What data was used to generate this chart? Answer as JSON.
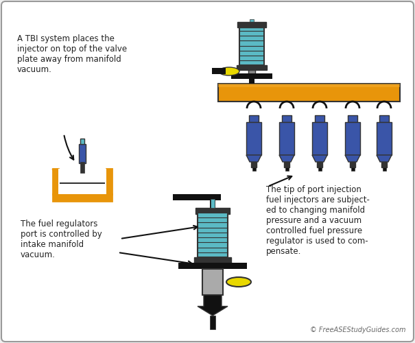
{
  "bg_color": "#f0f0f0",
  "border_color": "#aaaaaa",
  "orange": "#E8950A",
  "blue_inj": "#3A55A8",
  "cyan_coil": "#5BBAC5",
  "gray_body": "#888888",
  "black": "#111111",
  "yellow": "#E8D800",
  "dark_gray": "#333333",
  "mid_gray": "#666666",
  "light_gray": "#AAAAAA",
  "white": "#FFFFFF",
  "text_color": "#222222",
  "text1": "A TBI system places the\ninjector on top of the valve\nplate away from manifold\nvacuum.",
  "text2": "The tip of port injection\nfuel injectors are subject-\ned to changing manifold\npressure and a vacuum\ncontrolled fuel pressure\nregulator is used to com-\npensate.",
  "text3": "The fuel regulators\nport is controlled by\nintake manifold\nvacuum.",
  "watermark": "© FreeASEStudyGuides.com"
}
